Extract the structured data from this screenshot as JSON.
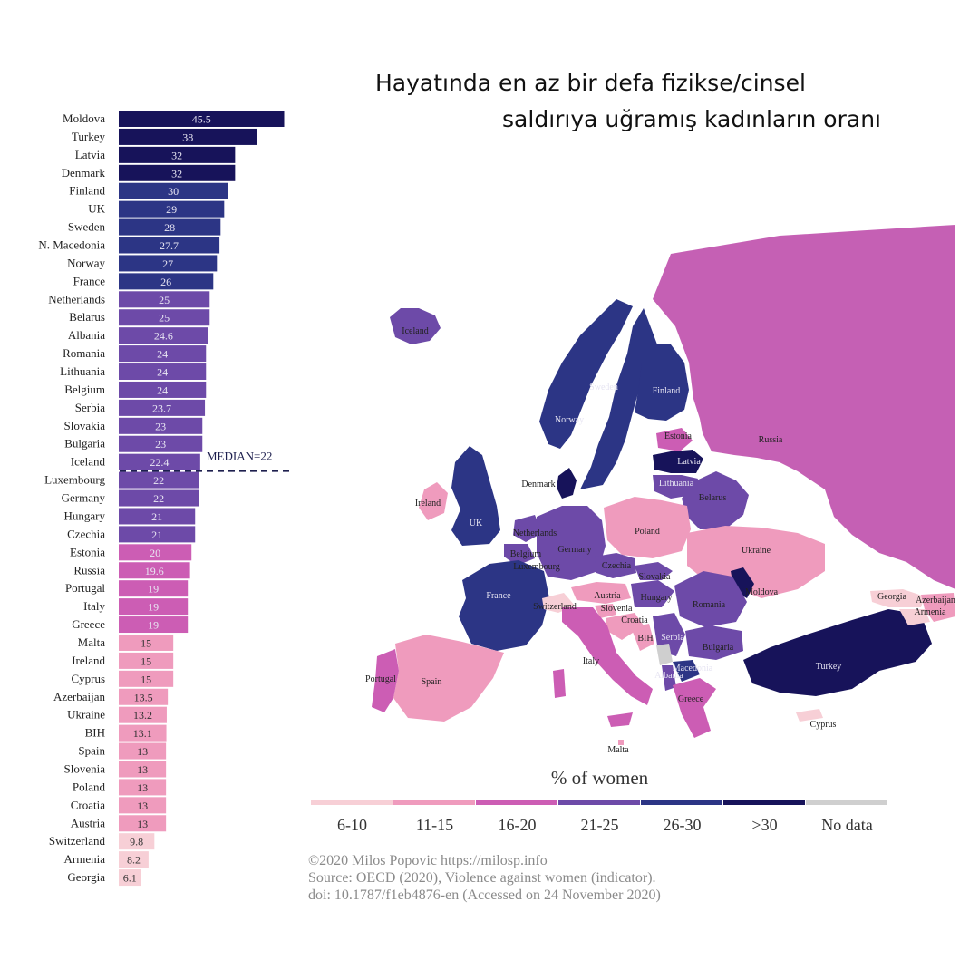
{
  "title": {
    "line1": "Hayatında en az bir defa fizikse/cinsel",
    "line2": "saldırıya uğramış kadınların oranı"
  },
  "chart_data": {
    "type": "bar",
    "orientation": "horizontal",
    "categories": [
      "Moldova",
      "Turkey",
      "Latvia",
      "Denmark",
      "Finland",
      "UK",
      "Sweden",
      "N. Macedonia",
      "Norway",
      "France",
      "Netherlands",
      "Belarus",
      "Albania",
      "Romania",
      "Lithuania",
      "Belgium",
      "Serbia",
      "Slovakia",
      "Bulgaria",
      "Iceland",
      "Luxembourg",
      "Germany",
      "Hungary",
      "Czechia",
      "Estonia",
      "Russia",
      "Portugal",
      "Italy",
      "Greece",
      "Malta",
      "Ireland",
      "Cyprus",
      "Azerbaijan",
      "Ukraine",
      "BIH",
      "Spain",
      "Slovenia",
      "Poland",
      "Croatia",
      "Austria",
      "Switzerland",
      "Armenia",
      "Georgia"
    ],
    "values": [
      45.5,
      38,
      32,
      32,
      30,
      29,
      28,
      27.7,
      27,
      26,
      25,
      25,
      24.6,
      24,
      24,
      24,
      23.7,
      23,
      23,
      22.4,
      22,
      22,
      21,
      21,
      20,
      19.6,
      19,
      19,
      19,
      15,
      15,
      15,
      13.5,
      13.2,
      13.1,
      13,
      13,
      13,
      13,
      13,
      9.8,
      8.2,
      6.1
    ],
    "value_labels": [
      "45.5",
      "38",
      "32",
      "32",
      "30",
      "29",
      "28",
      "27.7",
      "27",
      "26",
      "25",
      "25",
      "24.6",
      "24",
      "24",
      "24",
      "23.7",
      "23",
      "23",
      "22.4",
      "22",
      "22",
      "21",
      "21",
      "20",
      "19.6",
      "19",
      "19",
      "19",
      "15",
      "15",
      "15",
      "13.5",
      "13.2",
      "13.1",
      "13",
      "13",
      "13",
      "13",
      "13",
      "9.8",
      "8.2",
      "6.1"
    ],
    "median": {
      "label": "MEDIAN=22",
      "value": 22
    },
    "legend": {
      "title": "% of women",
      "bins": [
        {
          "label": "6-10",
          "color": "#f7cfd6"
        },
        {
          "label": "11-15",
          "color": "#ef9bbd"
        },
        {
          "label": "16-20",
          "color": "#cc5db4"
        },
        {
          "label": "21-25",
          "color": "#6d4aa8"
        },
        {
          "label": "26-30",
          "color": "#2c3585"
        },
        {
          "label": ">30",
          "color": "#17135a"
        },
        {
          "label": "No data",
          "color": "#cfcfcf"
        }
      ]
    },
    "map_labels": [
      "Iceland",
      "Norway",
      "Sweden",
      "Finland",
      "Estonia",
      "Latvia",
      "Lithuania",
      "Belarus",
      "Russia",
      "Denmark",
      "Ireland",
      "UK",
      "Netherlands",
      "Belgium",
      "Luxembourg",
      "Germany",
      "Poland",
      "Ukraine",
      "Czechia",
      "Slovakia",
      "Austria",
      "Hungary",
      "Moldova",
      "Romania",
      "France",
      "Switzerland",
      "Slovenia",
      "Croatia",
      "BIH",
      "Serbia",
      "Bulgaria",
      "Macedonia",
      "Albania",
      "Italy",
      "Portugal",
      "Spain",
      "Greece",
      "Malta",
      "Turkey",
      "Cyprus",
      "Georgia",
      "Azerbaijan",
      "Armenia"
    ]
  },
  "credit": {
    "line1": "©2020 Milos Popovic https://milosp.info",
    "line2": "Source: OECD (2020), Violence against women (indicator).",
    "line3": "doi: 10.1787/f1eb4876-en (Accessed on 24 November 2020)"
  }
}
